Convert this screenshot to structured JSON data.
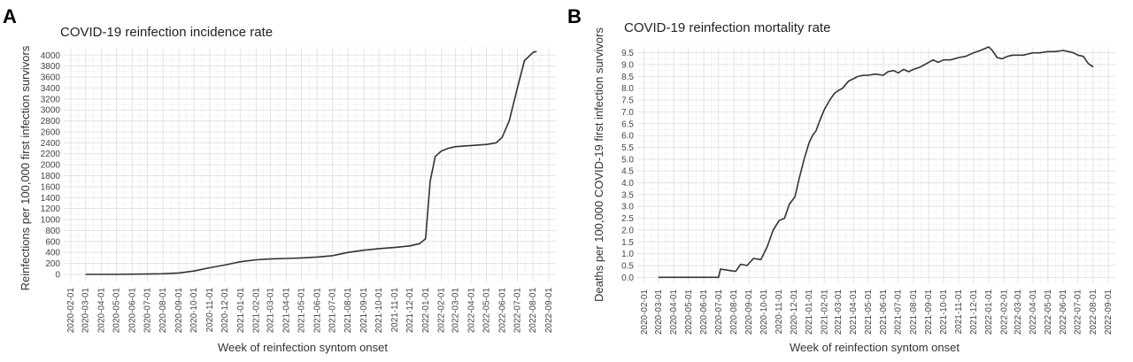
{
  "chart_data": [
    {
      "panel": "A",
      "type": "line",
      "title": "COVID-19 reinfection incidence rate",
      "xlabel": "Week of reinfection syntom onset",
      "ylabel": "Reinfections per 100,000 first infection survivors",
      "x_ticks": [
        "2020-02-01",
        "2020-03-01",
        "2020-04-01",
        "2020-05-01",
        "2020-06-01",
        "2020-07-01",
        "2020-08-01",
        "2020-09-01",
        "2020-10-01",
        "2020-11-01",
        "2020-12-01",
        "2021-01-01",
        "2021-02-01",
        "2021-03-01",
        "2021-04-01",
        "2021-05-01",
        "2021-06-01",
        "2021-07-01",
        "2021-08-01",
        "2021-09-01",
        "2021-10-01",
        "2021-11-01",
        "2021-12-01",
        "2022-01-01",
        "2022-02-01",
        "2022-03-01",
        "2022-04-01",
        "2022-05-01",
        "2022-06-01",
        "2022-07-01",
        "2022-08-01",
        "2022-09-01"
      ],
      "y_ticks": [
        0,
        200,
        400,
        600,
        800,
        1000,
        1200,
        1400,
        1600,
        1800,
        2000,
        2200,
        2400,
        2600,
        2800,
        3000,
        3200,
        3400,
        3600,
        3800,
        4000
      ],
      "ylim": [
        -130,
        4150
      ],
      "grid": true,
      "series": [
        {
          "x": [
            "2020-03-01",
            "2020-05-01",
            "2020-07-01",
            "2020-08-01",
            "2020-09-01",
            "2020-10-01",
            "2020-11-01",
            "2020-12-01",
            "2021-01-01",
            "2021-02-01",
            "2021-03-01",
            "2021-04-01",
            "2021-05-01",
            "2021-06-01",
            "2021-07-01",
            "2021-08-01",
            "2021-09-01",
            "2021-10-01",
            "2021-11-01",
            "2021-12-01",
            "2021-12-20",
            "2022-01-01",
            "2022-01-10",
            "2022-01-20",
            "2022-02-01",
            "2022-02-15",
            "2022-03-01",
            "2022-04-01",
            "2022-05-01",
            "2022-05-20",
            "2022-06-01",
            "2022-06-15",
            "2022-07-01",
            "2022-07-15",
            "2022-08-01",
            "2022-08-08"
          ],
          "y": [
            0,
            0,
            5,
            10,
            25,
            60,
            120,
            170,
            230,
            265,
            280,
            290,
            300,
            315,
            340,
            400,
            440,
            470,
            490,
            520,
            560,
            650,
            1700,
            2150,
            2250,
            2300,
            2330,
            2350,
            2370,
            2400,
            2500,
            2800,
            3400,
            3900,
            4050,
            4070
          ]
        }
      ]
    },
    {
      "panel": "B",
      "type": "line",
      "title": "COVID-19 reinfection mortality rate",
      "xlabel": "Week of reinfection syntom onset",
      "ylabel": "Deaths per 100,000 COVID-19 first infection survivors",
      "x_ticks": [
        "2020-02-01",
        "2020-03-01",
        "2020-04-01",
        "2020-05-01",
        "2020-06-01",
        "2020-07-01",
        "2020-08-01",
        "2020-09-01",
        "2020-10-01",
        "2020-11-01",
        "2020-12-01",
        "2021-01-01",
        "2021-02-01",
        "2021-03-01",
        "2021-04-01",
        "2021-05-01",
        "2021-06-01",
        "2021-07-01",
        "2021-08-01",
        "2021-09-01",
        "2021-10-01",
        "2021-11-01",
        "2021-12-01",
        "2022-01-01",
        "2022-02-01",
        "2022-03-01",
        "2022-04-01",
        "2022-05-01",
        "2022-06-01",
        "2022-07-01",
        "2022-08-01",
        "2022-09-01"
      ],
      "y_ticks": [
        "0.0",
        "0.5",
        "1.0",
        "1.5",
        "2.0",
        "2.5",
        "3.0",
        "3.5",
        "4.0",
        "4.5",
        "5.0",
        "5.5",
        "6.0",
        "6.5",
        "7.0",
        "7.5",
        "8.0",
        "8.5",
        "9.0",
        "9.5"
      ],
      "ylim": [
        -0.25,
        9.75
      ],
      "grid": true,
      "series": [
        {
          "x": [
            "2020-03-01",
            "2020-05-01",
            "2020-07-01",
            "2020-07-05",
            "2020-07-20",
            "2020-08-05",
            "2020-08-15",
            "2020-08-28",
            "2020-09-10",
            "2020-09-25",
            "2020-10-08",
            "2020-10-20",
            "2020-11-01",
            "2020-11-12",
            "2020-11-22",
            "2020-12-03",
            "2020-12-12",
            "2020-12-22",
            "2021-01-01",
            "2021-01-08",
            "2021-01-15",
            "2021-01-22",
            "2021-02-01",
            "2021-02-12",
            "2021-02-22",
            "2021-03-01",
            "2021-03-10",
            "2021-03-22",
            "2021-04-01",
            "2021-04-10",
            "2021-04-22",
            "2021-05-01",
            "2021-05-15",
            "2021-06-01",
            "2021-06-10",
            "2021-06-22",
            "2021-07-01",
            "2021-07-12",
            "2021-07-22",
            "2021-08-01",
            "2021-08-15",
            "2021-09-01",
            "2021-09-10",
            "2021-09-20",
            "2021-10-01",
            "2021-10-15",
            "2021-11-01",
            "2021-11-15",
            "2021-12-01",
            "2021-12-15",
            "2022-01-01",
            "2022-01-08",
            "2022-01-18",
            "2022-01-28",
            "2022-02-08",
            "2022-02-18",
            "2022-03-01",
            "2022-03-12",
            "2022-03-22",
            "2022-04-01",
            "2022-04-15",
            "2022-05-01",
            "2022-05-15",
            "2022-06-01",
            "2022-06-12",
            "2022-06-22",
            "2022-07-01",
            "2022-07-12",
            "2022-07-22",
            "2022-08-01"
          ],
          "y": [
            0,
            0,
            0,
            0.35,
            0.3,
            0.25,
            0.55,
            0.5,
            0.8,
            0.75,
            1.3,
            2.0,
            2.4,
            2.5,
            3.1,
            3.4,
            4.2,
            5.0,
            5.7,
            6.0,
            6.2,
            6.6,
            7.1,
            7.5,
            7.8,
            7.9,
            8.0,
            8.3,
            8.4,
            8.5,
            8.55,
            8.55,
            8.6,
            8.55,
            8.7,
            8.75,
            8.65,
            8.8,
            8.7,
            8.8,
            8.9,
            9.1,
            9.2,
            9.1,
            9.2,
            9.2,
            9.3,
            9.35,
            9.5,
            9.6,
            9.75,
            9.6,
            9.3,
            9.25,
            9.35,
            9.4,
            9.4,
            9.4,
            9.45,
            9.5,
            9.5,
            9.55,
            9.55,
            9.6,
            9.55,
            9.5,
            9.4,
            9.35,
            9.05,
            8.9
          ]
        }
      ]
    }
  ]
}
